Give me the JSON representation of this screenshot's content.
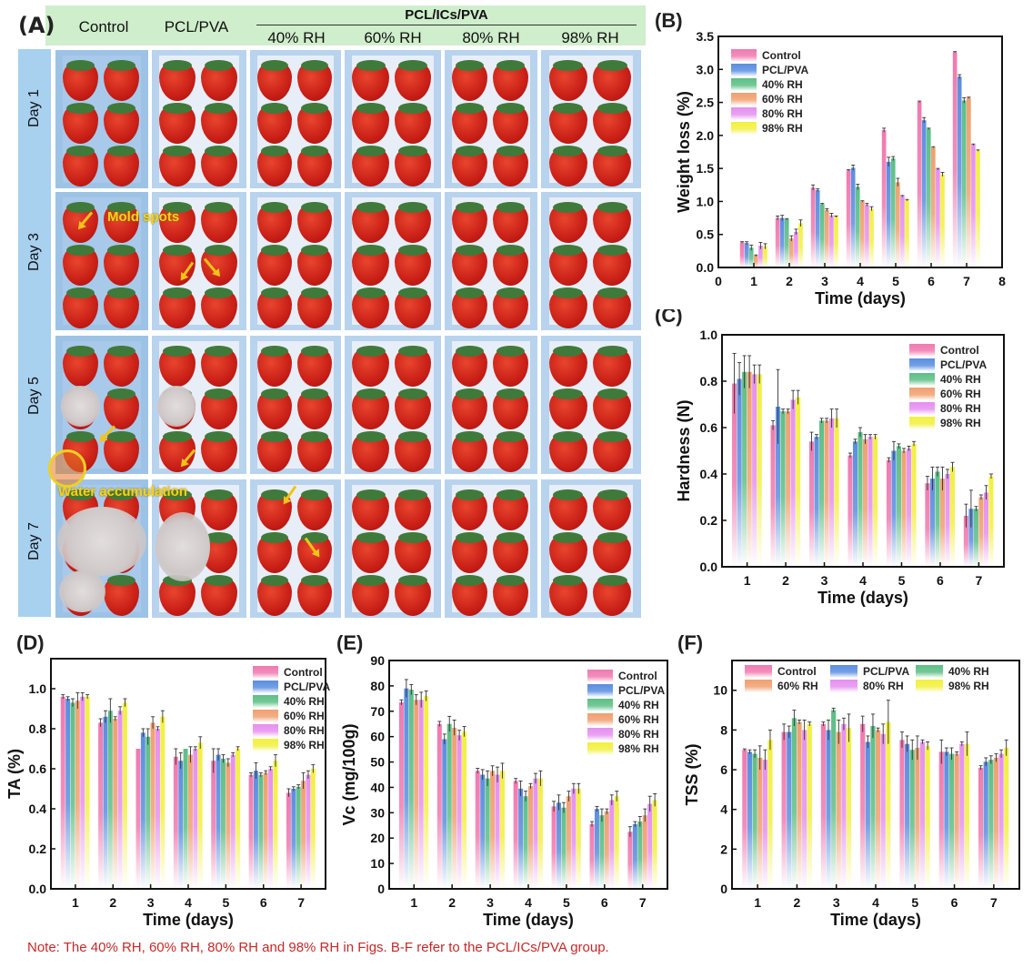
{
  "panel_a": {
    "label": "(A)",
    "columns": [
      "Control",
      "PCL/PVA"
    ],
    "group_header": "PCL/ICs/PVA",
    "subcolumns": [
      "40% RH",
      "60% RH",
      "80% RH",
      "98% RH"
    ],
    "rows": [
      "Day 1",
      "Day 3",
      "Day 5",
      "Day 7"
    ],
    "annotations": {
      "mold_spots": "Mold spots",
      "water_accumulation": "Water accumulation"
    }
  },
  "series_colors": {
    "Control": "#f07ab0",
    "PCL/PVA": "#5b8ee0",
    "40% RH": "#5dbf86",
    "60% RH": "#f0a070",
    "80% RH": "#e590f0",
    "98% RH": "#f2f040"
  },
  "note": "Note: The 40% RH, 60% RH, 80% RH and 98% RH in Figs. B-F refer to the PCL/ICs/PVA group.",
  "chart_data": [
    {
      "id": "B",
      "panel_label": "(B)",
      "type": "bar",
      "title": "",
      "xlabel": "Time (days)",
      "ylabel": "Weight loss (%)",
      "categories": [
        "1",
        "2",
        "3",
        "4",
        "5",
        "6",
        "7"
      ],
      "xticks": [
        "0",
        "1",
        "2",
        "3",
        "4",
        "5",
        "6",
        "7",
        "8"
      ],
      "xlim": [
        0,
        8
      ],
      "ylim": [
        0,
        3.5
      ],
      "yticks": [
        "0.0",
        "0.5",
        "1.0",
        "1.5",
        "2.0",
        "2.5",
        "3.0",
        "3.5"
      ],
      "ytick_values": [
        0,
        0.5,
        1,
        1.5,
        2,
        2.5,
        3,
        3.5
      ],
      "legend_position": "top-left",
      "legend_columns": 1,
      "grid": false,
      "series": [
        {
          "name": "Control",
          "values": [
            0.38,
            0.75,
            1.21,
            1.47,
            2.08,
            2.51,
            3.26
          ],
          "errors": [
            0.01,
            0.03,
            0.04,
            0.01,
            0.03,
            0.01,
            0.01
          ]
        },
        {
          "name": "PCL/PVA",
          "values": [
            0.37,
            0.75,
            1.17,
            1.51,
            1.6,
            2.23,
            2.89
          ],
          "errors": [
            0.02,
            0.04,
            0.02,
            0.04,
            0.07,
            0.04,
            0.03
          ]
        },
        {
          "name": "40% RH",
          "values": [
            0.3,
            0.73,
            0.96,
            1.22,
            1.65,
            2.1,
            2.53
          ],
          "errors": [
            0.04,
            0.01,
            0.01,
            0.04,
            0.03,
            0.01,
            0.04
          ]
        },
        {
          "name": "60% RH",
          "values": [
            0.18,
            0.44,
            0.87,
            1.0,
            1.29,
            1.82,
            2.57
          ],
          "errors": [
            0.01,
            0.04,
            0.02,
            0.01,
            0.06,
            0.01,
            0.01
          ]
        },
        {
          "name": "80% RH",
          "values": [
            0.33,
            0.54,
            0.79,
            0.95,
            1.08,
            1.49,
            1.86
          ],
          "errors": [
            0.05,
            0.04,
            0.03,
            0.02,
            0.01,
            0.01,
            0.01
          ]
        },
        {
          "name": "98% RH",
          "values": [
            0.32,
            0.67,
            0.77,
            0.89,
            1.02,
            1.41,
            1.77
          ],
          "errors": [
            0.04,
            0.05,
            0.01,
            0.03,
            0.01,
            0.03,
            0.01
          ]
        }
      ]
    },
    {
      "id": "C",
      "panel_label": "(C)",
      "type": "bar",
      "title": "",
      "xlabel": "Time (days)",
      "ylabel": "Hardness (N)",
      "categories": [
        "1",
        "2",
        "3",
        "4",
        "5",
        "6",
        "7"
      ],
      "xticks": [
        "1",
        "2",
        "3",
        "4",
        "5",
        "6",
        "7"
      ],
      "ylim": [
        0,
        1.0
      ],
      "yticks": [
        "0.0",
        "0.2",
        "0.4",
        "0.6",
        "0.8",
        "1.0"
      ],
      "ytick_values": [
        0,
        0.2,
        0.4,
        0.6,
        0.8,
        1.0
      ],
      "legend_position": "top-right",
      "legend_columns": 1,
      "grid": false,
      "series": [
        {
          "name": "Control",
          "values": [
            0.79,
            0.61,
            0.54,
            0.48,
            0.46,
            0.36,
            0.22
          ],
          "errors": [
            0.13,
            0.02,
            0.04,
            0.01,
            0.01,
            0.03,
            0.05
          ]
        },
        {
          "name": "PCL/PVA",
          "values": [
            0.81,
            0.69,
            0.56,
            0.54,
            0.5,
            0.38,
            0.25
          ],
          "errors": [
            0.07,
            0.16,
            0.01,
            0.01,
            0.04,
            0.05,
            0.08
          ]
        },
        {
          "name": "40% RH",
          "values": [
            0.84,
            0.67,
            0.63,
            0.58,
            0.52,
            0.41,
            0.25
          ],
          "errors": [
            0.07,
            0.01,
            0.01,
            0.02,
            0.01,
            0.02,
            0.01
          ]
        },
        {
          "name": "60% RH",
          "values": [
            0.84,
            0.67,
            0.63,
            0.55,
            0.5,
            0.38,
            0.3
          ],
          "errors": [
            0.07,
            0.01,
            0.01,
            0.02,
            0.01,
            0.05,
            0.01
          ]
        },
        {
          "name": "80% RH",
          "values": [
            0.83,
            0.72,
            0.64,
            0.56,
            0.51,
            0.4,
            0.32
          ],
          "errors": [
            0.04,
            0.04,
            0.04,
            0.01,
            0.01,
            0.02,
            0.03
          ]
        },
        {
          "name": "98% RH",
          "values": [
            0.83,
            0.73,
            0.64,
            0.56,
            0.53,
            0.43,
            0.39
          ],
          "errors": [
            0.04,
            0.03,
            0.04,
            0.01,
            0.01,
            0.02,
            0.01
          ]
        }
      ]
    },
    {
      "id": "D",
      "panel_label": "(D)",
      "type": "bar",
      "title": "",
      "xlabel": "Time (days)",
      "ylabel": "TA (%)",
      "categories": [
        "1",
        "2",
        "3",
        "4",
        "5",
        "6",
        "7"
      ],
      "xticks": [
        "1",
        "2",
        "3",
        "4",
        "5",
        "6",
        "7"
      ],
      "ylim": [
        0,
        1.15
      ],
      "yticks": [
        "0.0",
        "0.2",
        "0.4",
        "0.6",
        "0.8",
        "1.0"
      ],
      "ytick_values": [
        0,
        0.2,
        0.4,
        0.6,
        0.8,
        1.0
      ],
      "legend_position": "top-right",
      "legend_columns": 1,
      "grid": false,
      "series": [
        {
          "name": "Control",
          "values": [
            0.96,
            0.83,
            0.7,
            0.66,
            0.64,
            0.57,
            0.48
          ],
          "errors": [
            0.01,
            0.02,
            0.0,
            0.04,
            0.06,
            0.01,
            0.02
          ]
        },
        {
          "name": "PCL/PVA",
          "values": [
            0.95,
            0.86,
            0.78,
            0.64,
            0.67,
            0.59,
            0.5
          ],
          "errors": [
            0.01,
            0.03,
            0.02,
            0.04,
            0.03,
            0.04,
            0.01
          ]
        },
        {
          "name": "40% RH",
          "values": [
            0.93,
            0.89,
            0.76,
            0.7,
            0.65,
            0.57,
            0.51
          ],
          "errors": [
            0.02,
            0.06,
            0.04,
            0.0,
            0.02,
            0.01,
            0.01
          ]
        },
        {
          "name": "60% RH",
          "values": [
            0.94,
            0.85,
            0.83,
            0.67,
            0.63,
            0.58,
            0.54
          ],
          "errors": [
            0.04,
            0.01,
            0.03,
            0.04,
            0.02,
            0.01,
            0.04
          ]
        },
        {
          "name": "80% RH",
          "values": [
            0.96,
            0.89,
            0.8,
            0.7,
            0.67,
            0.6,
            0.57
          ],
          "errors": [
            0.02,
            0.02,
            0.01,
            0.01,
            0.01,
            0.01,
            0.02
          ]
        },
        {
          "name": "98% RH",
          "values": [
            0.96,
            0.93,
            0.86,
            0.73,
            0.7,
            0.64,
            0.6
          ],
          "errors": [
            0.01,
            0.02,
            0.03,
            0.03,
            0.01,
            0.03,
            0.02
          ]
        }
      ]
    },
    {
      "id": "E",
      "panel_label": "(E)",
      "type": "bar",
      "title": "",
      "xlabel": "Time (days)",
      "ylabel": "Vc (mg/100g)",
      "categories": [
        "1",
        "2",
        "3",
        "4",
        "5",
        "6",
        "7"
      ],
      "xticks": [
        "1",
        "2",
        "3",
        "4",
        "5",
        "6",
        "7"
      ],
      "ylim": [
        0,
        90
      ],
      "yticks": [
        "0",
        "10",
        "20",
        "30",
        "40",
        "50",
        "60",
        "70",
        "80",
        "90"
      ],
      "ytick_values": [
        0,
        10,
        20,
        30,
        40,
        50,
        60,
        70,
        80,
        90
      ],
      "legend_position": "top-right",
      "legend_columns": 1,
      "grid": false,
      "series": [
        {
          "name": "Control",
          "values": [
            73.5,
            65.0,
            46.5,
            42.5,
            32.5,
            25.5,
            22.5
          ],
          "errors": [
            1.0,
            1.0,
            1.0,
            1.0,
            2.0,
            1.0,
            2.0
          ]
        },
        {
          "name": "PCL/PVA",
          "values": [
            79.0,
            59.0,
            45.0,
            39.5,
            34.0,
            31.5,
            25.5
          ],
          "errors": [
            3.5,
            2.0,
            2.0,
            3.0,
            3.0,
            1.0,
            1.0
          ]
        },
        {
          "name": "40% RH",
          "values": [
            78.5,
            65.0,
            43.5,
            36.5,
            32.0,
            29.0,
            26.5
          ],
          "errors": [
            2.0,
            3.0,
            3.0,
            2.0,
            2.0,
            2.5,
            2.0
          ]
        },
        {
          "name": "60% RH",
          "values": [
            74.5,
            63.5,
            46.5,
            40.5,
            36.5,
            30.5,
            29.0
          ],
          "errors": [
            2.0,
            3.0,
            2.0,
            1.0,
            2.0,
            1.0,
            2.5
          ]
        },
        {
          "name": "80% RH",
          "values": [
            74.5,
            60.5,
            45.0,
            43.5,
            39.5,
            35.0,
            33.5
          ],
          "errors": [
            3.0,
            2.0,
            3.0,
            2.0,
            2.0,
            2.0,
            3.0
          ]
        },
        {
          "name": "98% RH",
          "values": [
            76.0,
            62.0,
            46.5,
            43.5,
            39.5,
            36.5,
            35.0
          ],
          "errors": [
            2.0,
            2.0,
            3.0,
            3.0,
            2.0,
            2.0,
            2.5
          ]
        }
      ]
    },
    {
      "id": "F",
      "panel_label": "(F)",
      "type": "bar",
      "title": "",
      "xlabel": "Time (days)",
      "ylabel": "TSS (%)",
      "categories": [
        "1",
        "2",
        "3",
        "4",
        "5",
        "6",
        "7"
      ],
      "xticks": [
        "1",
        "2",
        "3",
        "4",
        "5",
        "6",
        "7"
      ],
      "ylim": [
        0,
        11.5
      ],
      "yticks": [
        "0",
        "2",
        "4",
        "6",
        "8",
        "10"
      ],
      "ytick_values": [
        0,
        2,
        4,
        6,
        8,
        10
      ],
      "legend_position": "top (3 columns)",
      "legend_columns": 3,
      "grid": false,
      "series": [
        {
          "name": "Control",
          "values": [
            7.0,
            7.9,
            8.3,
            8.3,
            7.5,
            6.9,
            6.1
          ],
          "errors": [
            0.05,
            0.4,
            0.1,
            0.4,
            0.4,
            0.6,
            0.1
          ]
        },
        {
          "name": "PCL/PVA",
          "values": [
            6.9,
            7.9,
            8.0,
            7.4,
            7.3,
            6.9,
            6.4
          ],
          "errors": [
            0.1,
            0.3,
            0.5,
            0.3,
            0.4,
            0.2,
            0.2
          ]
        },
        {
          "name": "40% RH",
          "values": [
            6.8,
            8.6,
            9.0,
            8.2,
            7.0,
            6.8,
            6.5
          ],
          "errors": [
            0.2,
            0.4,
            0.1,
            0.6,
            0.5,
            0.3,
            0.2
          ]
        },
        {
          "name": "60% RH",
          "values": [
            6.6,
            8.4,
            7.9,
            8.0,
            7.1,
            6.8,
            6.6
          ],
          "errors": [
            0.6,
            0.1,
            0.6,
            0.1,
            0.6,
            0.1,
            0.2
          ]
        },
        {
          "name": "80% RH",
          "values": [
            6.5,
            8.0,
            8.3,
            7.8,
            7.4,
            7.3,
            6.8
          ],
          "errors": [
            0.5,
            0.5,
            0.3,
            0.5,
            0.1,
            0.1,
            0.2
          ]
        },
        {
          "name": "98% RH",
          "values": [
            7.5,
            8.3,
            8.1,
            8.4,
            7.2,
            7.3,
            7.1
          ],
          "errors": [
            0.5,
            0.1,
            0.7,
            1.1,
            0.2,
            0.6,
            0.4
          ]
        }
      ]
    }
  ]
}
